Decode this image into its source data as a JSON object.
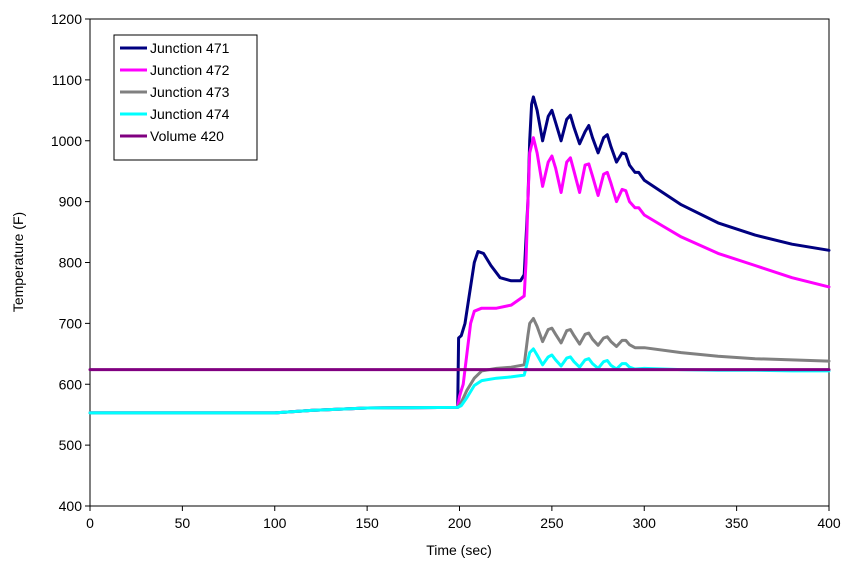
{
  "chart_data": {
    "type": "line",
    "title": "",
    "xlabel": "Time (sec)",
    "ylabel": "Temperature (F)",
    "xlim": [
      0,
      400
    ],
    "ylim": [
      400,
      1200
    ],
    "xticks": [
      0,
      50,
      100,
      150,
      200,
      250,
      300,
      350,
      400
    ],
    "yticks": [
      400,
      500,
      600,
      700,
      800,
      900,
      1000,
      1100,
      1200
    ],
    "grid": false,
    "legend_position": "top-left",
    "series": [
      {
        "name": "Junction 471",
        "color": "#000080",
        "points": [
          [
            0,
            553
          ],
          [
            100,
            553
          ],
          [
            120,
            557
          ],
          [
            150,
            561
          ],
          [
            199,
            562
          ],
          [
            199.5,
            676
          ],
          [
            201,
            680
          ],
          [
            203,
            700
          ],
          [
            205,
            740
          ],
          [
            208,
            800
          ],
          [
            210,
            818
          ],
          [
            213,
            815
          ],
          [
            217,
            795
          ],
          [
            222,
            775
          ],
          [
            228,
            770
          ],
          [
            233,
            770
          ],
          [
            235,
            780
          ],
          [
            237,
            900
          ],
          [
            238,
            1000
          ],
          [
            239,
            1060
          ],
          [
            240,
            1072
          ],
          [
            242,
            1050
          ],
          [
            245,
            1000
          ],
          [
            248,
            1040
          ],
          [
            250,
            1050
          ],
          [
            252,
            1030
          ],
          [
            255,
            1000
          ],
          [
            258,
            1035
          ],
          [
            260,
            1042
          ],
          [
            262,
            1022
          ],
          [
            265,
            995
          ],
          [
            268,
            1015
          ],
          [
            270,
            1025
          ],
          [
            272,
            1005
          ],
          [
            275,
            980
          ],
          [
            278,
            1005
          ],
          [
            280,
            1010
          ],
          [
            282,
            990
          ],
          [
            285,
            965
          ],
          [
            288,
            980
          ],
          [
            290,
            978
          ],
          [
            292,
            960
          ],
          [
            295,
            948
          ],
          [
            297,
            948
          ],
          [
            300,
            935
          ],
          [
            310,
            915
          ],
          [
            320,
            895
          ],
          [
            340,
            865
          ],
          [
            360,
            845
          ],
          [
            380,
            830
          ],
          [
            400,
            820
          ]
        ]
      },
      {
        "name": "Junction 472",
        "color": "#ff00ff",
        "points": [
          [
            0,
            553
          ],
          [
            100,
            553
          ],
          [
            120,
            557
          ],
          [
            150,
            561
          ],
          [
            199,
            562
          ],
          [
            200,
            580
          ],
          [
            201,
            590
          ],
          [
            202,
            600
          ],
          [
            204,
            650
          ],
          [
            206,
            700
          ],
          [
            208,
            720
          ],
          [
            212,
            725
          ],
          [
            220,
            725
          ],
          [
            228,
            730
          ],
          [
            235,
            745
          ],
          [
            236,
            800
          ],
          [
            237,
            900
          ],
          [
            238,
            980
          ],
          [
            240,
            1005
          ],
          [
            242,
            980
          ],
          [
            245,
            925
          ],
          [
            248,
            965
          ],
          [
            250,
            975
          ],
          [
            252,
            955
          ],
          [
            255,
            915
          ],
          [
            258,
            965
          ],
          [
            260,
            972
          ],
          [
            262,
            950
          ],
          [
            265,
            915
          ],
          [
            268,
            960
          ],
          [
            270,
            962
          ],
          [
            272,
            942
          ],
          [
            275,
            910
          ],
          [
            278,
            945
          ],
          [
            280,
            948
          ],
          [
            282,
            930
          ],
          [
            285,
            900
          ],
          [
            288,
            920
          ],
          [
            290,
            918
          ],
          [
            292,
            900
          ],
          [
            295,
            890
          ],
          [
            297,
            890
          ],
          [
            300,
            878
          ],
          [
            310,
            860
          ],
          [
            320,
            842
          ],
          [
            340,
            815
          ],
          [
            360,
            795
          ],
          [
            380,
            775
          ],
          [
            400,
            760
          ]
        ]
      },
      {
        "name": "Junction 473",
        "color": "#808080",
        "points": [
          [
            0,
            553
          ],
          [
            100,
            553
          ],
          [
            120,
            557
          ],
          [
            150,
            561
          ],
          [
            199,
            562
          ],
          [
            201,
            570
          ],
          [
            204,
            590
          ],
          [
            208,
            610
          ],
          [
            212,
            622
          ],
          [
            220,
            626
          ],
          [
            228,
            628
          ],
          [
            235,
            632
          ],
          [
            237,
            680
          ],
          [
            238,
            700
          ],
          [
            240,
            708
          ],
          [
            242,
            695
          ],
          [
            245,
            670
          ],
          [
            248,
            690
          ],
          [
            250,
            692
          ],
          [
            252,
            682
          ],
          [
            255,
            668
          ],
          [
            258,
            688
          ],
          [
            260,
            690
          ],
          [
            262,
            680
          ],
          [
            265,
            666
          ],
          [
            268,
            682
          ],
          [
            270,
            684
          ],
          [
            272,
            674
          ],
          [
            275,
            664
          ],
          [
            278,
            676
          ],
          [
            280,
            678
          ],
          [
            282,
            670
          ],
          [
            285,
            662
          ],
          [
            288,
            672
          ],
          [
            290,
            672
          ],
          [
            292,
            665
          ],
          [
            295,
            660
          ],
          [
            300,
            660
          ],
          [
            320,
            652
          ],
          [
            340,
            646
          ],
          [
            360,
            642
          ],
          [
            380,
            640
          ],
          [
            400,
            638
          ]
        ]
      },
      {
        "name": "Junction 474",
        "color": "#00ffff",
        "points": [
          [
            0,
            553
          ],
          [
            100,
            553
          ],
          [
            120,
            557
          ],
          [
            150,
            561
          ],
          [
            199,
            562
          ],
          [
            201,
            565
          ],
          [
            204,
            578
          ],
          [
            208,
            598
          ],
          [
            212,
            606
          ],
          [
            220,
            610
          ],
          [
            228,
            612
          ],
          [
            235,
            615
          ],
          [
            237,
            640
          ],
          [
            238,
            652
          ],
          [
            240,
            658
          ],
          [
            242,
            648
          ],
          [
            245,
            632
          ],
          [
            248,
            645
          ],
          [
            250,
            648
          ],
          [
            252,
            640
          ],
          [
            255,
            630
          ],
          [
            258,
            643
          ],
          [
            260,
            645
          ],
          [
            262,
            637
          ],
          [
            265,
            628
          ],
          [
            268,
            640
          ],
          [
            270,
            642
          ],
          [
            272,
            634
          ],
          [
            275,
            626
          ],
          [
            278,
            637
          ],
          [
            280,
            639
          ],
          [
            282,
            631
          ],
          [
            285,
            625
          ],
          [
            288,
            634
          ],
          [
            290,
            634
          ],
          [
            292,
            628
          ],
          [
            295,
            625
          ],
          [
            300,
            626
          ],
          [
            320,
            624
          ],
          [
            340,
            623
          ],
          [
            360,
            623
          ],
          [
            380,
            622
          ],
          [
            400,
            622
          ]
        ]
      },
      {
        "name": "Volume 420",
        "color": "#800080",
        "points": [
          [
            0,
            624
          ],
          [
            400,
            624
          ]
        ]
      }
    ]
  }
}
